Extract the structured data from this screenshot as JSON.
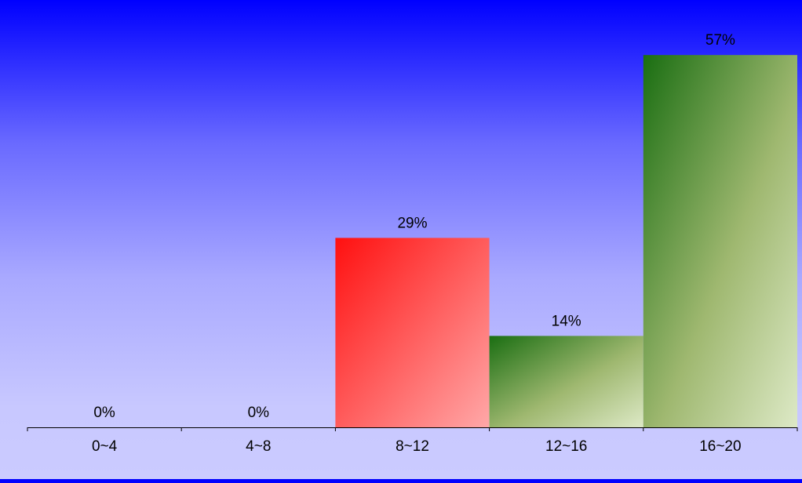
{
  "chart_data": {
    "type": "bar",
    "categories": [
      "0~4",
      "4~8",
      "8~12",
      "12~16",
      "16~20"
    ],
    "values": [
      0,
      0,
      29,
      14,
      57
    ],
    "value_labels": [
      "0%",
      "0%",
      "29%",
      "14%",
      "57%"
    ],
    "unit": "%",
    "title": "",
    "xlabel": "",
    "ylabel": "",
    "ylim": [
      0,
      60
    ],
    "grid": false,
    "legend": "none",
    "bar_colors": [
      {
        "from": "#ff1010",
        "to": "#ffa8a8"
      },
      {
        "from": "#ff1010",
        "to": "#ffa8a8"
      },
      {
        "from": "#ff1010",
        "to": "#ffa8a8"
      },
      {
        "from": "#1a6e12",
        "to": "#dde9c6"
      },
      {
        "from": "#1a6e12",
        "to": "#dde9c6"
      }
    ],
    "background": {
      "top": "#0000ff",
      "bottom": "#cbcbff"
    }
  }
}
